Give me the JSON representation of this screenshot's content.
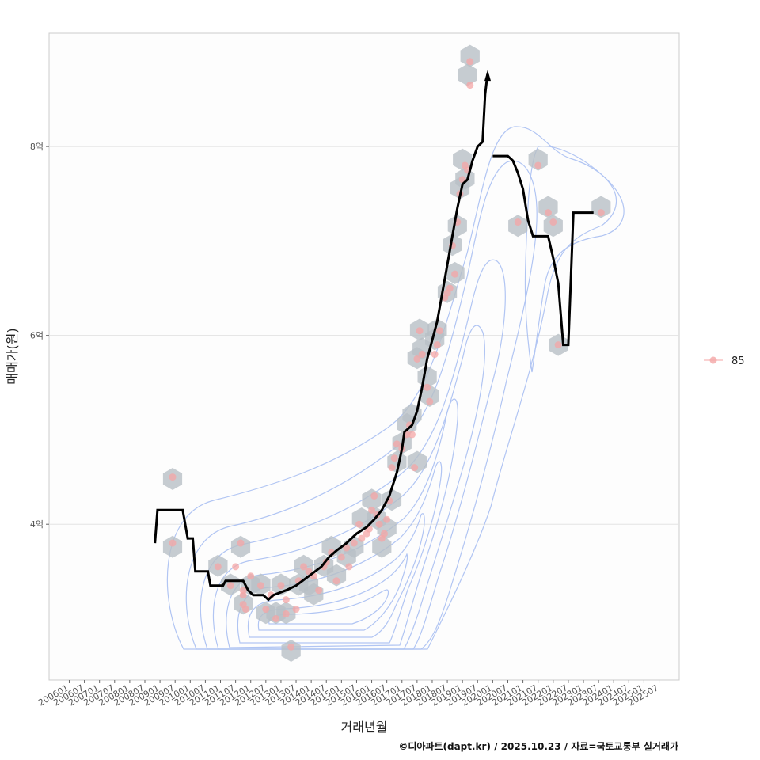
{
  "chart_data": {
    "type": "scatter",
    "title": "",
    "xlabel": "거래년월",
    "ylabel": "매매가(원)",
    "caption": "©디아파트(dapt.kr) / 2025.10.23 / 자료=국토교통부 실거래가",
    "x_unit": "months since 2006-01",
    "x_tick_labels": [
      "200601",
      "200607",
      "200701",
      "200707",
      "200801",
      "200807",
      "200901",
      "200907",
      "201001",
      "201007",
      "201101",
      "201107",
      "201201",
      "201207",
      "201301",
      "201307",
      "201401",
      "201407",
      "201501",
      "201507",
      "201601",
      "201607",
      "201701",
      "201707",
      "201801",
      "201807",
      "201901",
      "201907",
      "202001",
      "202007",
      "202101",
      "202107",
      "202201",
      "202207",
      "202301",
      "202307",
      "202401",
      "202407",
      "202501",
      "202507"
    ],
    "x_range": [
      -8,
      242
    ],
    "y_unit": "100M KRW (억)",
    "y_ticks": [
      {
        "value": 4,
        "label": "4억"
      },
      {
        "value": 6,
        "label": "6억"
      },
      {
        "value": 8,
        "label": "8억"
      }
    ],
    "y_range": [
      2.35,
      9.2
    ],
    "grid": "horizontal major lines",
    "legend": {
      "position": "right",
      "entries": [
        {
          "label": "85",
          "color": "#f4a6a6"
        }
      ]
    },
    "colors": {
      "points": "#f4a6a6",
      "hex": "#b8bfc6",
      "contour": "#a9bff2",
      "trend": "#000000"
    },
    "series": [
      {
        "name": "85",
        "kind": "points",
        "values": [
          [
            41,
            4.5
          ],
          [
            41,
            3.8
          ],
          [
            59,
            3.55
          ],
          [
            64,
            3.35
          ],
          [
            66,
            3.55
          ],
          [
            68,
            3.8
          ],
          [
            69,
            3.15
          ],
          [
            69,
            3.25
          ],
          [
            69,
            3.3
          ],
          [
            70,
            3.1
          ],
          [
            72,
            3.45
          ],
          [
            76,
            3.35
          ],
          [
            78,
            3.1
          ],
          [
            80,
            3.25
          ],
          [
            82,
            3.0
          ],
          [
            84,
            3.35
          ],
          [
            86,
            3.05
          ],
          [
            86,
            3.2
          ],
          [
            88,
            2.7
          ],
          [
            90,
            3.1
          ],
          [
            91,
            3.4
          ],
          [
            93,
            3.55
          ],
          [
            95,
            3.5
          ],
          [
            97,
            3.45
          ],
          [
            99,
            3.3
          ],
          [
            101,
            3.55
          ],
          [
            102,
            3.6
          ],
          [
            104,
            3.7
          ],
          [
            106,
            3.4
          ],
          [
            108,
            3.65
          ],
          [
            110,
            3.75
          ],
          [
            111,
            3.55
          ],
          [
            113,
            3.8
          ],
          [
            115,
            4.0
          ],
          [
            116,
            3.85
          ],
          [
            118,
            3.9
          ],
          [
            119,
            3.95
          ],
          [
            120,
            4.15
          ],
          [
            121,
            4.3
          ],
          [
            122,
            4.1
          ],
          [
            123,
            4.0
          ],
          [
            124,
            3.85
          ],
          [
            125,
            3.9
          ],
          [
            126,
            4.05
          ],
          [
            127,
            4.25
          ],
          [
            128,
            4.6
          ],
          [
            129,
            4.7
          ],
          [
            130,
            4.85
          ],
          [
            132,
            4.8
          ],
          [
            134,
            4.95
          ],
          [
            135,
            5.05
          ],
          [
            136,
            4.95
          ],
          [
            137,
            4.6
          ],
          [
            138,
            5.75
          ],
          [
            139,
            6.05
          ],
          [
            140,
            5.8
          ],
          [
            142,
            5.45
          ],
          [
            143,
            5.3
          ],
          [
            145,
            5.8
          ],
          [
            146,
            5.9
          ],
          [
            147,
            6.05
          ],
          [
            149,
            6.4
          ],
          [
            150,
            6.45
          ],
          [
            151,
            6.5
          ],
          [
            152,
            6.95
          ],
          [
            153,
            6.65
          ],
          [
            154,
            7.2
          ],
          [
            155,
            7.5
          ],
          [
            156,
            7.65
          ],
          [
            157,
            7.8
          ],
          [
            158,
            7.75
          ],
          [
            159,
            8.65
          ],
          [
            159,
            8.9
          ],
          [
            178,
            7.2
          ],
          [
            186,
            7.8
          ],
          [
            190,
            7.3
          ],
          [
            192,
            7.2
          ],
          [
            194,
            5.9
          ],
          [
            211,
            7.3
          ]
        ]
      },
      {
        "name": "hexbin",
        "kind": "hexbin",
        "values": [
          [
            41,
            4.48
          ],
          [
            41,
            3.76
          ],
          [
            59,
            3.56
          ],
          [
            64,
            3.36
          ],
          [
            68,
            3.76
          ],
          [
            69,
            3.16
          ],
          [
            72,
            3.36
          ],
          [
            76,
            3.36
          ],
          [
            78,
            3.06
          ],
          [
            82,
            3.06
          ],
          [
            84,
            3.36
          ],
          [
            86,
            3.06
          ],
          [
            88,
            2.66
          ],
          [
            91,
            3.36
          ],
          [
            93,
            3.56
          ],
          [
            95,
            3.36
          ],
          [
            97,
            3.26
          ],
          [
            101,
            3.56
          ],
          [
            104,
            3.76
          ],
          [
            106,
            3.46
          ],
          [
            110,
            3.66
          ],
          [
            113,
            3.76
          ],
          [
            116,
            4.06
          ],
          [
            120,
            4.26
          ],
          [
            122,
            4.06
          ],
          [
            124,
            3.76
          ],
          [
            126,
            3.96
          ],
          [
            128,
            4.26
          ],
          [
            130,
            4.66
          ],
          [
            132,
            4.86
          ],
          [
            134,
            5.06
          ],
          [
            136,
            5.16
          ],
          [
            138,
            4.66
          ],
          [
            138,
            5.76
          ],
          [
            139,
            6.06
          ],
          [
            140,
            5.86
          ],
          [
            142,
            5.56
          ],
          [
            143,
            5.36
          ],
          [
            145,
            5.96
          ],
          [
            146,
            6.06
          ],
          [
            150,
            6.46
          ],
          [
            152,
            6.96
          ],
          [
            153,
            6.66
          ],
          [
            154,
            7.16
          ],
          [
            155,
            7.56
          ],
          [
            156,
            7.86
          ],
          [
            157,
            7.66
          ],
          [
            158,
            8.76
          ],
          [
            159,
            8.96
          ],
          [
            178,
            7.16
          ],
          [
            186,
            7.86
          ],
          [
            190,
            7.36
          ],
          [
            192,
            7.16
          ],
          [
            194,
            5.9
          ],
          [
            211,
            7.36
          ]
        ]
      },
      {
        "name": "trend",
        "kind": "step-line",
        "values": [
          [
            34,
            3.8
          ],
          [
            35,
            4.15
          ],
          [
            45,
            4.15
          ],
          [
            47,
            3.85
          ],
          [
            49,
            3.85
          ],
          [
            50,
            3.5
          ],
          [
            55,
            3.5
          ],
          [
            56,
            3.35
          ],
          [
            61,
            3.35
          ],
          [
            62,
            3.4
          ],
          [
            69,
            3.4
          ],
          [
            71,
            3.3
          ],
          [
            73,
            3.25
          ],
          [
            77,
            3.25
          ],
          [
            79,
            3.2
          ],
          [
            81,
            3.25
          ],
          [
            86,
            3.3
          ],
          [
            90,
            3.35
          ],
          [
            95,
            3.45
          ],
          [
            100,
            3.55
          ],
          [
            103,
            3.65
          ],
          [
            106,
            3.72
          ],
          [
            110,
            3.8
          ],
          [
            114,
            3.9
          ],
          [
            118,
            3.97
          ],
          [
            121,
            4.05
          ],
          [
            124,
            4.15
          ],
          [
            127,
            4.3
          ],
          [
            130,
            4.55
          ],
          [
            132,
            4.8
          ],
          [
            133,
            4.98
          ],
          [
            134,
            5.0
          ],
          [
            136,
            5.05
          ],
          [
            138,
            5.2
          ],
          [
            140,
            5.45
          ],
          [
            142,
            5.75
          ],
          [
            144,
            5.95
          ],
          [
            146,
            6.15
          ],
          [
            148,
            6.45
          ],
          [
            150,
            6.75
          ],
          [
            152,
            7.05
          ],
          [
            154,
            7.35
          ],
          [
            156,
            7.6
          ],
          [
            158,
            7.65
          ],
          [
            160,
            7.85
          ],
          [
            162,
            8.0
          ],
          [
            164,
            8.05
          ],
          [
            165,
            8.55
          ],
          [
            166,
            8.78
          ]
        ]
      },
      {
        "name": "trend-post-2022",
        "kind": "step-line",
        "values": [
          [
            168,
            7.9
          ],
          [
            174,
            7.9
          ],
          [
            176,
            7.85
          ],
          [
            178,
            7.72
          ],
          [
            180,
            7.55
          ],
          [
            182,
            7.22
          ],
          [
            184,
            7.05
          ],
          [
            190,
            7.05
          ],
          [
            192,
            6.82
          ],
          [
            194,
            6.55
          ],
          [
            196,
            5.9
          ],
          [
            198,
            5.9
          ],
          [
            200,
            7.3
          ],
          [
            208,
            7.3
          ]
        ]
      }
    ]
  }
}
